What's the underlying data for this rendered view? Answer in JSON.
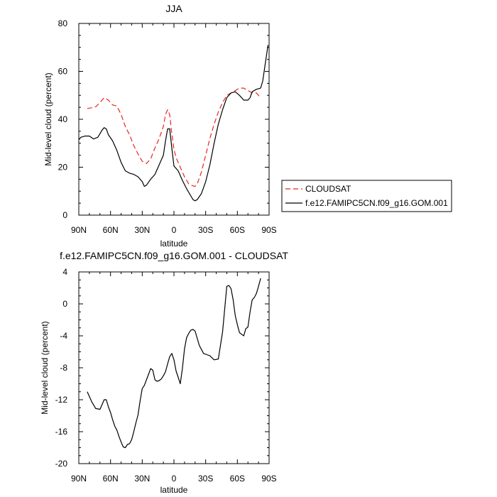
{
  "chart_data": [
    {
      "type": "line",
      "title": "JJA",
      "xlabel": "latitude",
      "ylabel": "Mid-level cloud (percent)",
      "xlim": [
        90,
        -90
      ],
      "ylim": [
        0,
        80
      ],
      "x_ticks": [
        90,
        60,
        30,
        0,
        -30,
        -60,
        -90
      ],
      "x_tick_labels": [
        "90N",
        "60N",
        "30N",
        "0",
        "30S",
        "60S",
        "90S"
      ],
      "y_ticks": [
        0,
        20,
        40,
        60,
        80
      ],
      "y_tick_labels": [
        "0",
        "20",
        "40",
        "60",
        "80"
      ],
      "grid": false,
      "legend": {
        "placement": "right",
        "entries": [
          "CLOUDSAT",
          "f.e12.FAMIPC5CN.f09_g16.GOM.001"
        ]
      },
      "series": [
        {
          "name": "CLOUDSAT",
          "color": "#e8251f",
          "dash": "dashed",
          "x": [
            82,
            78,
            74,
            70,
            66,
            62,
            58,
            54,
            50,
            46,
            42,
            38,
            34,
            30,
            26,
            22,
            18,
            14,
            10,
            8,
            6,
            4,
            2,
            0,
            -2,
            -6,
            -10,
            -14,
            -18,
            -20,
            -22,
            -26,
            -30,
            -34,
            -38,
            -42,
            -46,
            -50,
            -54,
            -58,
            -62,
            -66,
            -70,
            -74,
            -78,
            -82
          ],
          "y": [
            44.5,
            44.8,
            45.2,
            47,
            49,
            48,
            46,
            45.5,
            42,
            37,
            33.5,
            29,
            25.5,
            22.5,
            21.5,
            23.5,
            28,
            32,
            37,
            42,
            44,
            42,
            34,
            27.5,
            24,
            20,
            16,
            13,
            12.2,
            12,
            13,
            18,
            25,
            32,
            38,
            43,
            47,
            50,
            51,
            52,
            53,
            53,
            52,
            51,
            51,
            49
          ]
        },
        {
          "name": "f.e12.FAMIPC5CN.f09_g16.GOM.001",
          "color": "#000000",
          "dash": "solid",
          "x": [
            90,
            88,
            84,
            80,
            76,
            72,
            68,
            66,
            64,
            62,
            58,
            54,
            50,
            46,
            42,
            38,
            34,
            30,
            28,
            26,
            22,
            18,
            14,
            10,
            8,
            6,
            4,
            2,
            0,
            -4,
            -8,
            -12,
            -16,
            -18,
            -20,
            -22,
            -26,
            -30,
            -34,
            -38,
            -42,
            -46,
            -50,
            -54,
            -58,
            -62,
            -66,
            -70,
            -72,
            -74,
            -78,
            -82,
            -84,
            -86,
            -88,
            -89
          ],
          "y": [
            31.5,
            32.5,
            33,
            33,
            31.8,
            32.5,
            35.5,
            36.5,
            36,
            33.5,
            31,
            27,
            22,
            18.5,
            17.5,
            17,
            16,
            14,
            12,
            12.5,
            15,
            17,
            21,
            25,
            31,
            36,
            36,
            28,
            20.5,
            18.5,
            14.5,
            11,
            8,
            6.5,
            6,
            6.5,
            9,
            14,
            21,
            30,
            38,
            44,
            49,
            51,
            51.5,
            50,
            48,
            48,
            49,
            51.5,
            52.5,
            53,
            56,
            62,
            68,
            71
          ]
        }
      ]
    },
    {
      "type": "line",
      "title": "f.e12.FAMIPC5CN.f09_g16.GOM.001 - CLOUDSAT",
      "xlabel": "latitude",
      "ylabel": "Mid-level cloud (percent)",
      "xlim": [
        90,
        -90
      ],
      "ylim": [
        -20,
        4
      ],
      "x_ticks": [
        90,
        60,
        30,
        0,
        -30,
        -60,
        -90
      ],
      "x_tick_labels": [
        "90N",
        "60N",
        "30N",
        "0",
        "30S",
        "60S",
        "90S"
      ],
      "y_ticks": [
        4,
        0,
        -4,
        -8,
        -12,
        -16,
        -20
      ],
      "y_tick_labels": [
        "4",
        "0",
        "-4",
        "-8",
        "-12",
        "-16",
        "-20"
      ],
      "grid": false,
      "series": [
        {
          "color": "#000000",
          "dash": "solid",
          "x": [
            82,
            78,
            74,
            70,
            68,
            66,
            64,
            62,
            60,
            58,
            56,
            54,
            52,
            50,
            48,
            46,
            44,
            42,
            40,
            38,
            36,
            34,
            32,
            30,
            28,
            26,
            24,
            22,
            20,
            18,
            16,
            14,
            12,
            10,
            8,
            6,
            4,
            2,
            0,
            -2,
            -4,
            -6,
            -8,
            -10,
            -12,
            -14,
            -16,
            -18,
            -20,
            -24,
            -28,
            -32,
            -34,
            -38,
            -42,
            -46,
            -50,
            -52,
            -54,
            -56,
            -58,
            -60,
            -62,
            -64,
            -66,
            -68,
            -70,
            -72,
            -74,
            -76,
            -78,
            -80,
            -82
          ],
          "y": [
            -11,
            -12.2,
            -13.1,
            -13.2,
            -12.6,
            -12,
            -12,
            -12.9,
            -13.6,
            -14.5,
            -15.3,
            -15.8,
            -16.6,
            -17.3,
            -17.9,
            -18,
            -17.6,
            -17.5,
            -17,
            -16,
            -14.9,
            -13.9,
            -12.1,
            -10.6,
            -10.2,
            -9.5,
            -8.8,
            -8.1,
            -8.3,
            -9.5,
            -9.7,
            -9.6,
            -9.4,
            -9,
            -8.5,
            -7.5,
            -6.6,
            -6.2,
            -7,
            -8.4,
            -9.2,
            -10,
            -8.1,
            -5.6,
            -4.2,
            -3.7,
            -3.3,
            -3.2,
            -3.4,
            -5.2,
            -6.2,
            -6.4,
            -6.5,
            -7,
            -6.9,
            -3.5,
            2.2,
            2.3,
            1.9,
            0.5,
            -1.5,
            -2.6,
            -3.6,
            -3.8,
            -4,
            -3.1,
            -2.9,
            -1,
            0.5,
            0.8,
            1.3,
            2.2,
            3.2
          ]
        }
      ]
    }
  ]
}
